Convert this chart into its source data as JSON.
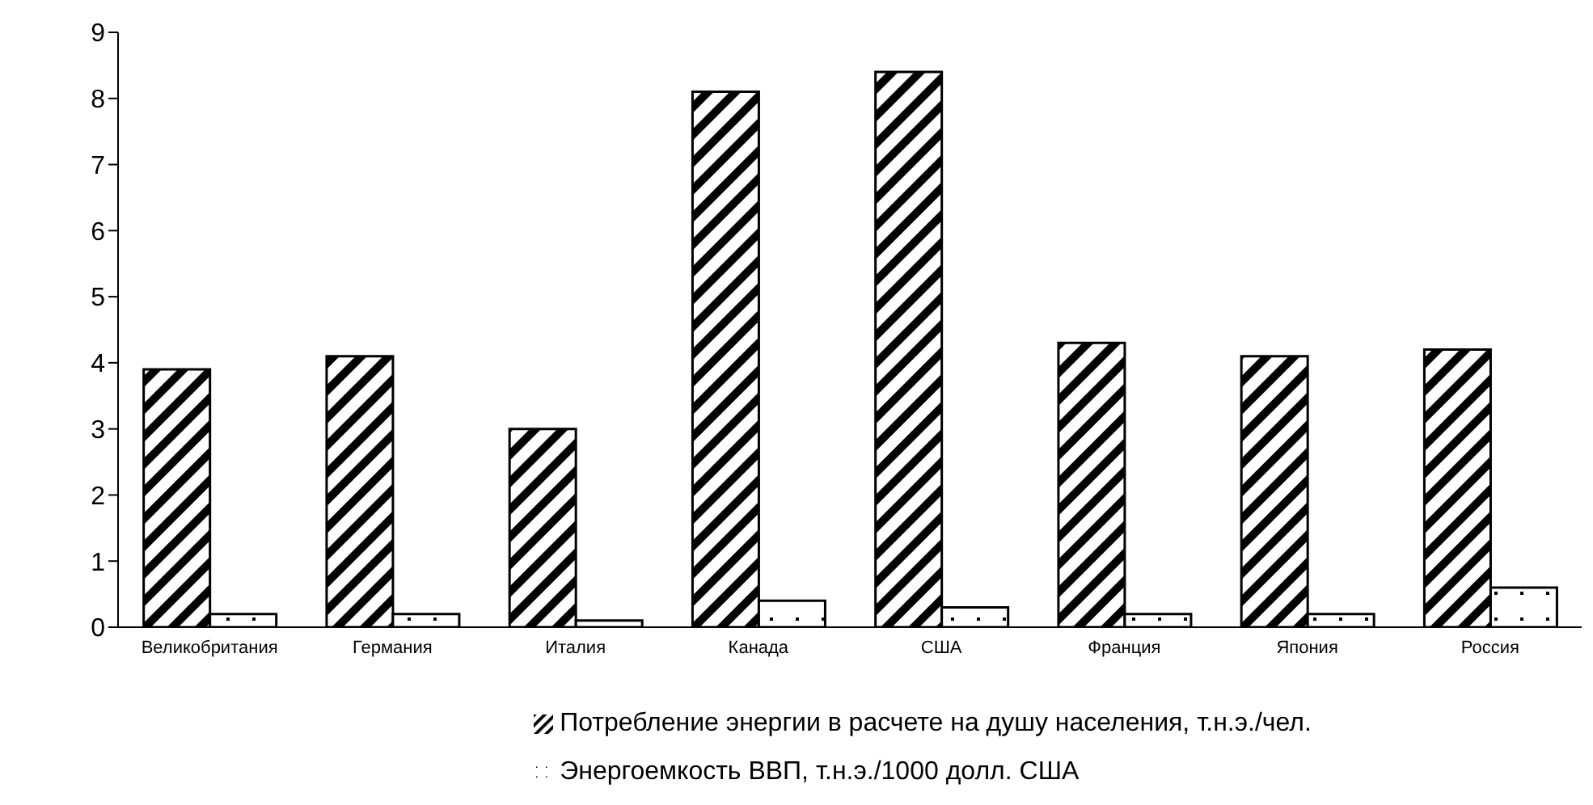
{
  "chart_data": {
    "type": "bar",
    "categories": [
      "Великобритания",
      "Германия",
      "Италия",
      "Канада",
      "США",
      "Франция",
      "Япония",
      "Россия"
    ],
    "series": [
      {
        "name": "Потребление энергии в расчете на душу населения, т.н.э./чел.",
        "color": "#000000",
        "values": [
          3.9,
          4.1,
          3.0,
          8.1,
          8.4,
          4.3,
          4.1,
          4.2
        ]
      },
      {
        "name": "Энергоемкость ВВП, т.н.э./1000 долл. США",
        "color": "#000000",
        "values": [
          0.2,
          0.2,
          0.1,
          0.4,
          0.3,
          0.2,
          0.2,
          0.6
        ]
      }
    ],
    "ylim": [
      0,
      9
    ],
    "yticks": [
      0,
      1,
      2,
      3,
      4,
      5,
      6,
      7,
      8,
      9
    ],
    "grid": false,
    "legend": "bottom"
  }
}
